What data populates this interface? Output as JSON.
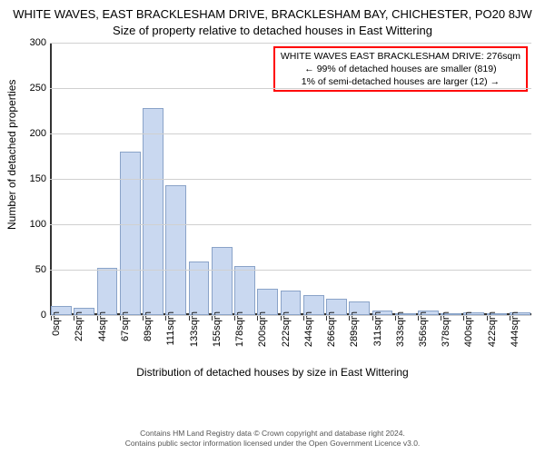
{
  "title": "WHITE WAVES, EAST BRACKLESHAM DRIVE, BRACKLESHAM BAY, CHICHESTER, PO20 8JW",
  "subtitle": "Size of property relative to detached houses in East Wittering",
  "ylabel": "Number of detached properties",
  "xlabel": "Distribution of detached houses by size in East Wittering",
  "ylim": [
    0,
    300
  ],
  "ytick_step": 50,
  "grid_color": "#d0d0d0",
  "bar_fill": "#c9d8f0",
  "bar_border": "#8aa3c8",
  "annotation_border": "#ff0000",
  "annotation": {
    "line1": "WHITE WAVES EAST BRACKLESHAM DRIVE: 276sqm",
    "line2": "← 99% of detached houses are smaller (819)",
    "line3": "1% of semi-detached houses are larger (12) →"
  },
  "categories": [
    "0sqm",
    "22sqm",
    "44sqm",
    "67sqm",
    "89sqm",
    "111sqm",
    "133sqm",
    "155sqm",
    "178sqm",
    "200sqm",
    "222sqm",
    "244sqm",
    "266sqm",
    "289sqm",
    "311sqm",
    "333sqm",
    "356sqm",
    "378sqm",
    "400sqm",
    "422sqm",
    "444sqm"
  ],
  "values": [
    10,
    8,
    52,
    180,
    228,
    143,
    59,
    75,
    54,
    29,
    27,
    22,
    18,
    15,
    5,
    0,
    5,
    0,
    3,
    0,
    3
  ],
  "footer": {
    "line1": "Contains HM Land Registry data © Crown copyright and database right 2024.",
    "line2": "Contains public sector information licensed under the Open Government Licence v3.0."
  }
}
